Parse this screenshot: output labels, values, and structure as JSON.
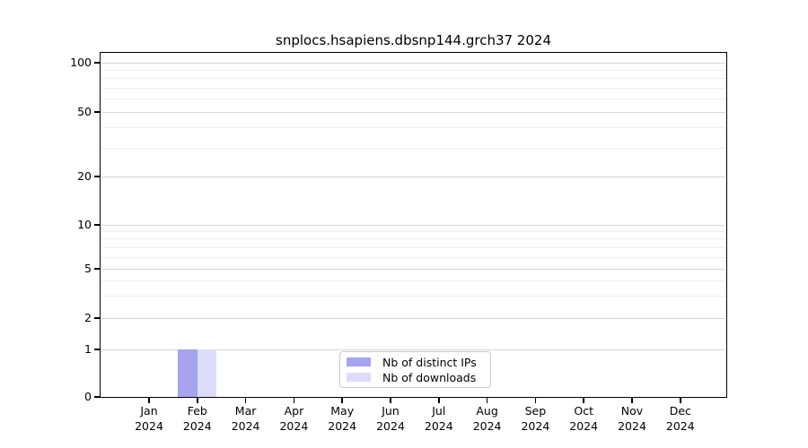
{
  "chart_data": {
    "type": "bar",
    "title": "snplocs.hsapiens.dbsnp144.grch37 2024",
    "months": [
      "Jan",
      "Feb",
      "Mar",
      "Apr",
      "May",
      "Jun",
      "Jul",
      "Aug",
      "Sep",
      "Oct",
      "Nov",
      "Dec"
    ],
    "year": "2024",
    "yticks": [
      0,
      1,
      2,
      5,
      10,
      20,
      50,
      100
    ],
    "yscale": "log-with-zero-baseline",
    "ylim": [
      0,
      115
    ],
    "grid": "horizontal-major-and-minor",
    "legend_position": "inside-bottom-center",
    "series": [
      {
        "name": "Nb of distinct IPs",
        "color": "#a4a4f1",
        "values": [
          0,
          1,
          0,
          0,
          0,
          0,
          0,
          0,
          0,
          0,
          0,
          0
        ]
      },
      {
        "name": "Nb of downloads",
        "color": "#dcdcfa",
        "values": [
          0,
          1,
          0,
          0,
          0,
          0,
          0,
          0,
          0,
          0,
          0,
          0
        ]
      }
    ]
  },
  "colors": {
    "major_grid": "#d5d5d5",
    "minor_grid": "#eeeeee",
    "axis": "#000000",
    "legend_border": "#c9c9c9"
  }
}
